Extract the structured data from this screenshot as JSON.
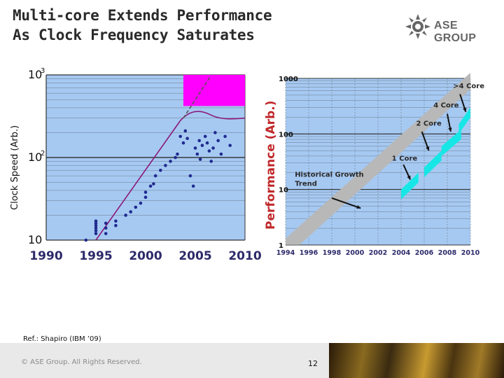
{
  "header": {
    "title_line1": "Multi-core Extends Performance",
    "title_line2": "As Clock Frequency Saturates",
    "logo_text": "ASE GROUP"
  },
  "footer": {
    "reference": "Ref.: Shapiro (IBM ’09)",
    "copyright": "© ASE Group. All Rights Reserved.",
    "page_number": "12"
  },
  "colors": {
    "plot_bg": "#a6c9f2",
    "dots": "#1f2a8f",
    "trend_line": "#8a1a7a",
    "saturation_box": "#ff00ff",
    "growth_band": "#b8b8b8",
    "core_boxes": "#17e6e6"
  },
  "chart_data": [
    {
      "type": "scatter",
      "title": "",
      "xlabel": "",
      "ylabel": "Clock Speed (Arb.)",
      "yscale": "log",
      "xlim": [
        1990,
        2010
      ],
      "ylim": [
        10,
        1000
      ],
      "x_ticks": [
        "1990",
        "1995",
        "2000",
        "2005",
        "2010"
      ],
      "y_ticks": [
        {
          "base": "10",
          "exp": "3"
        },
        {
          "base": "10",
          "exp": "2"
        },
        {
          "base": "10",
          "exp": ""
        }
      ],
      "grid": true,
      "series": [
        {
          "points": [
            [
              1994.0,
              10
            ],
            [
              1995.0,
              12
            ],
            [
              1995.0,
              13
            ],
            [
              1995.0,
              14
            ],
            [
              1995.0,
              15
            ],
            [
              1995.0,
              16
            ],
            [
              1995.0,
              17
            ],
            [
              1996.0,
              12
            ],
            [
              1996.0,
              14
            ],
            [
              1996.0,
              16
            ],
            [
              1997.0,
              15
            ],
            [
              1997.0,
              17
            ],
            [
              1998.0,
              20
            ],
            [
              1998.5,
              22
            ],
            [
              1999.0,
              25
            ],
            [
              1999.5,
              28
            ],
            [
              2000.0,
              33
            ],
            [
              2000.0,
              38
            ],
            [
              2000.5,
              45
            ],
            [
              2000.8,
              48
            ],
            [
              2001.0,
              60
            ],
            [
              2001.5,
              70
            ],
            [
              2002.0,
              80
            ],
            [
              2002.5,
              90
            ],
            [
              2003.0,
              100
            ],
            [
              2003.2,
              110
            ],
            [
              2003.5,
              180
            ],
            [
              2003.8,
              150
            ],
            [
              2004.0,
              210
            ],
            [
              2004.2,
              170
            ],
            [
              2004.5,
              60
            ],
            [
              2004.8,
              45
            ],
            [
              2005.0,
              130
            ],
            [
              2005.2,
              110
            ],
            [
              2005.4,
              160
            ],
            [
              2005.5,
              95
            ],
            [
              2005.7,
              140
            ],
            [
              2006.0,
              180
            ],
            [
              2006.2,
              150
            ],
            [
              2006.4,
              120
            ],
            [
              2006.6,
              90
            ],
            [
              2006.8,
              130
            ],
            [
              2007.0,
              200
            ],
            [
              2007.3,
              160
            ],
            [
              2007.6,
              110
            ],
            [
              2008.0,
              180
            ],
            [
              2008.5,
              140
            ]
          ]
        }
      ],
      "annotations": [
        "trend line",
        "saturation box"
      ]
    },
    {
      "type": "line",
      "title": "",
      "xlabel": "",
      "ylabel": "Performance (Arb.)",
      "yscale": "log",
      "xlim": [
        1994,
        2010
      ],
      "ylim": [
        1,
        1000
      ],
      "x_ticks": [
        "1994",
        "1996",
        "1998",
        "2000",
        "2002",
        "2004",
        "2006",
        "2008",
        "2010"
      ],
      "y_ticks": [
        "1000",
        "100",
        "10",
        "1"
      ],
      "grid": true,
      "series": [
        {
          "name": "Historical Growth Trend",
          "x": [
            1994,
            2010
          ],
          "y": [
            1.2,
            1000
          ]
        },
        {
          "name": "1 Core",
          "x": [
            2004,
            2005.5
          ],
          "y": [
            10,
            20
          ]
        },
        {
          "name": "2 Core",
          "x": [
            2006,
            2007.5
          ],
          "y": [
            25,
            50
          ]
        },
        {
          "name": "4 Core",
          "x": [
            2007.5,
            2009.2
          ],
          "y": [
            60,
            120
          ]
        },
        {
          "name": ">4 Core",
          "x": [
            2009,
            2010
          ],
          "y": [
            150,
            300
          ]
        }
      ],
      "annotations": [
        "Historical Growth Trend",
        "1 Core",
        "2 Core",
        "4 Core",
        ">4 Core"
      ]
    }
  ]
}
